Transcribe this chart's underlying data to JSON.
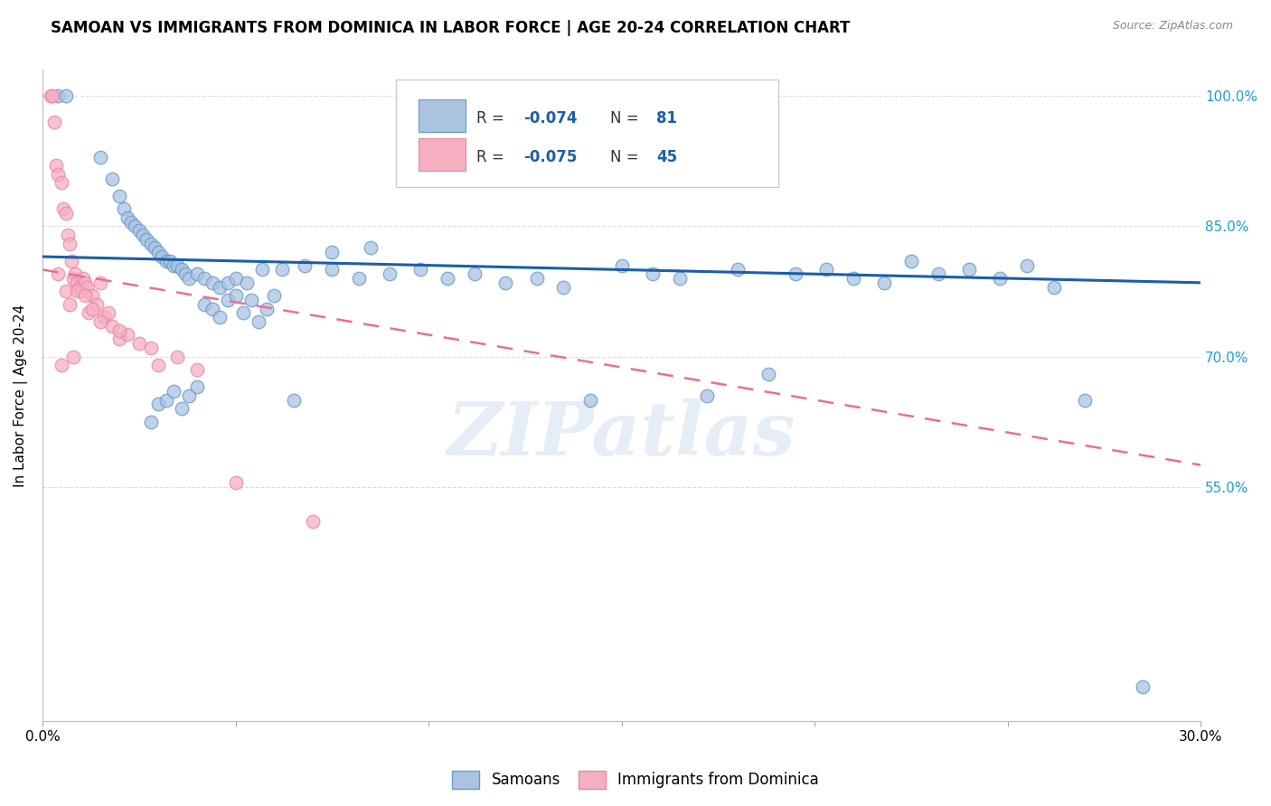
{
  "title": "SAMOAN VS IMMIGRANTS FROM DOMINICA IN LABOR FORCE | AGE 20-24 CORRELATION CHART",
  "source": "Source: ZipAtlas.com",
  "ylabel": "In Labor Force | Age 20-24",
  "xlim": [
    0.0,
    30.0
  ],
  "ylim": [
    28.0,
    103.0
  ],
  "y_ticks": [
    55.0,
    70.0,
    85.0,
    100.0
  ],
  "y_tick_labels": [
    "55.0%",
    "70.0%",
    "85.0%",
    "100.0%"
  ],
  "x_ticks": [
    0.0,
    5.0,
    10.0,
    15.0,
    20.0,
    25.0,
    30.0
  ],
  "x_tick_labels": [
    "0.0%",
    "",
    "",
    "",
    "",
    "",
    "30.0%"
  ],
  "legend_r1": "-0.074",
  "legend_n1": "81",
  "legend_r2": "-0.075",
  "legend_n2": "45",
  "blue_color": "#aac4e0",
  "pink_color": "#f5afc0",
  "blue_edge_color": "#6699cc",
  "pink_edge_color": "#e888a8",
  "blue_line_color": "#1a5fa8",
  "pink_line_color": "#e87090",
  "watermark": "ZIPatlas",
  "blue_scatter_x": [
    0.4,
    0.6,
    1.5,
    1.8,
    2.0,
    2.1,
    2.2,
    2.3,
    2.4,
    2.5,
    2.6,
    2.7,
    2.8,
    2.9,
    3.0,
    3.1,
    3.2,
    3.3,
    3.4,
    3.5,
    3.6,
    3.7,
    3.8,
    4.0,
    4.2,
    4.4,
    4.6,
    4.8,
    5.0,
    5.3,
    5.7,
    6.2,
    6.8,
    7.5,
    8.2,
    9.0,
    9.8,
    10.5,
    11.2,
    12.0,
    12.8,
    13.5,
    14.2,
    15.0,
    15.8,
    16.5,
    17.2,
    18.0,
    18.8,
    19.5,
    20.3,
    21.0,
    21.8,
    22.5,
    23.2,
    24.0,
    24.8,
    25.5,
    26.2,
    27.0,
    7.5,
    8.5,
    2.8,
    3.0,
    3.2,
    3.4,
    3.6,
    3.8,
    4.0,
    4.2,
    4.4,
    4.6,
    4.8,
    5.0,
    5.2,
    5.4,
    5.6,
    5.8,
    6.0,
    6.5,
    28.5
  ],
  "blue_scatter_y": [
    100.0,
    100.0,
    93.0,
    90.5,
    88.5,
    87.0,
    86.0,
    85.5,
    85.0,
    84.5,
    84.0,
    83.5,
    83.0,
    82.5,
    82.0,
    81.5,
    81.0,
    81.0,
    80.5,
    80.5,
    80.0,
    79.5,
    79.0,
    79.5,
    79.0,
    78.5,
    78.0,
    78.5,
    79.0,
    78.5,
    80.0,
    80.0,
    80.5,
    80.0,
    79.0,
    79.5,
    80.0,
    79.0,
    79.5,
    78.5,
    79.0,
    78.0,
    65.0,
    80.5,
    79.5,
    79.0,
    65.5,
    80.0,
    68.0,
    79.5,
    80.0,
    79.0,
    78.5,
    81.0,
    79.5,
    80.0,
    79.0,
    80.5,
    78.0,
    65.0,
    82.0,
    82.5,
    62.5,
    64.5,
    65.0,
    66.0,
    64.0,
    65.5,
    66.5,
    76.0,
    75.5,
    74.5,
    76.5,
    77.0,
    75.0,
    76.5,
    74.0,
    75.5,
    77.0,
    65.0,
    32.0
  ],
  "pink_scatter_x": [
    0.2,
    0.25,
    0.3,
    0.35,
    0.4,
    0.5,
    0.55,
    0.6,
    0.65,
    0.7,
    0.75,
    0.8,
    0.85,
    0.9,
    0.95,
    1.0,
    1.05,
    1.1,
    1.15,
    1.2,
    1.3,
    1.4,
    1.5,
    1.6,
    1.7,
    1.8,
    2.0,
    2.2,
    2.5,
    2.8,
    3.0,
    3.5,
    4.0,
    0.4,
    0.6,
    0.7,
    0.9,
    1.1,
    1.3,
    1.5,
    2.0,
    0.5,
    0.8,
    5.0,
    7.0
  ],
  "pink_scatter_y": [
    100.0,
    100.0,
    97.0,
    92.0,
    91.0,
    90.0,
    87.0,
    86.5,
    84.0,
    83.0,
    81.0,
    79.0,
    79.5,
    78.5,
    78.0,
    77.5,
    79.0,
    78.5,
    78.0,
    75.0,
    77.0,
    76.0,
    78.5,
    74.5,
    75.0,
    73.5,
    72.0,
    72.5,
    71.5,
    71.0,
    69.0,
    70.0,
    68.5,
    79.5,
    77.5,
    76.0,
    77.5,
    77.0,
    75.5,
    74.0,
    73.0,
    69.0,
    70.0,
    55.5,
    51.0
  ],
  "blue_trend_x": [
    0.0,
    30.0
  ],
  "blue_trend_y": [
    81.5,
    78.5
  ],
  "pink_trend_x": [
    0.0,
    30.0
  ],
  "pink_trend_y": [
    80.0,
    57.5
  ],
  "grid_color": "#dddddd",
  "background_color": "#ffffff",
  "tick_color": "#1a9fd4",
  "title_fontsize": 12,
  "label_fontsize": 11,
  "ytick_fontsize": 11
}
